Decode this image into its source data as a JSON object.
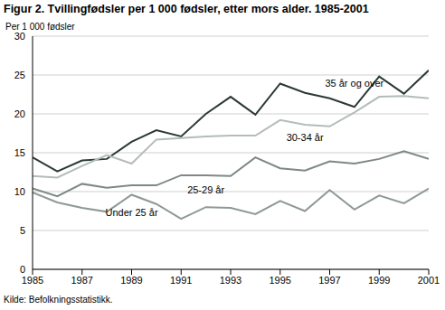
{
  "chart_data": {
    "type": "line",
    "title": "Figur 2. Tvillingfødsler per 1 000 fødsler, etter mors alder. 1985-2001",
    "y_label": "Per 1 000 fødsler",
    "source": "Kilde: Befolkningsstatistikk.",
    "x": [
      1985,
      1986,
      1987,
      1988,
      1989,
      1990,
      1991,
      1992,
      1993,
      1994,
      1995,
      1996,
      1997,
      1998,
      1999,
      2000,
      2001
    ],
    "xlim": [
      1985,
      2001
    ],
    "xticks": [
      1985,
      1987,
      1989,
      1991,
      1993,
      1995,
      1997,
      1999,
      2001
    ],
    "ylim": [
      0,
      30
    ],
    "yticks": [
      0,
      5,
      10,
      15,
      20,
      25,
      30
    ],
    "grid": true,
    "series": [
      {
        "name": "35 år og over",
        "color": "#2b3a36",
        "values": [
          14.4,
          12.6,
          14.0,
          14.2,
          16.4,
          17.9,
          17.1,
          20.0,
          22.2,
          19.9,
          23.9,
          22.7,
          22.0,
          20.9,
          24.8,
          22.6,
          25.6
        ]
      },
      {
        "name": "30-34 år",
        "color": "#b4bcb8",
        "values": [
          12.0,
          11.8,
          13.3,
          14.7,
          13.6,
          16.7,
          16.9,
          17.1,
          17.2,
          17.2,
          19.2,
          18.6,
          18.4,
          20.2,
          22.2,
          22.3,
          22.0
        ]
      },
      {
        "name": "25-29 år",
        "color": "#7e8885",
        "values": [
          10.4,
          9.4,
          11.0,
          10.5,
          10.8,
          10.8,
          12.1,
          12.1,
          12.0,
          14.4,
          13.0,
          12.7,
          13.9,
          13.6,
          14.2,
          15.2,
          14.2
        ]
      },
      {
        "name": "Under 25 år",
        "color": "#8e9995",
        "values": [
          9.9,
          8.6,
          7.9,
          7.4,
          9.6,
          8.4,
          6.5,
          8.0,
          7.9,
          7.1,
          8.8,
          7.5,
          10.2,
          7.7,
          9.5,
          8.5,
          10.4
        ]
      }
    ]
  }
}
